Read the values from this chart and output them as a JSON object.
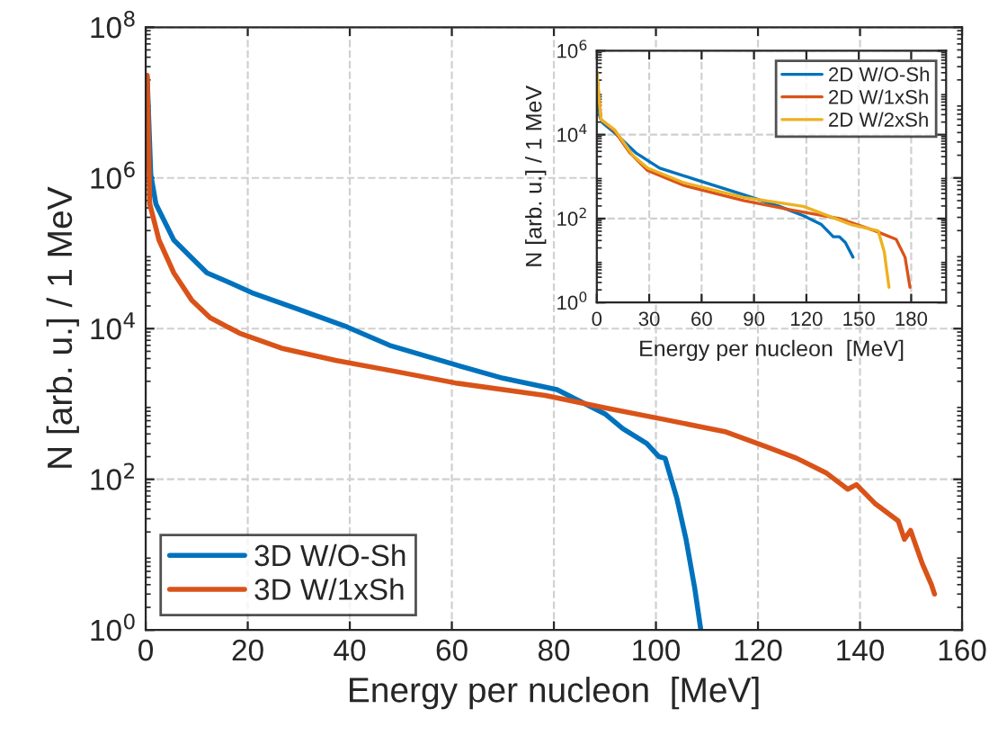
{
  "chart_data": [
    {
      "type": "line",
      "xlabel": "Energy per nucleon  [MeV]",
      "ylabel": "N [arb. u.] / 1 MeV",
      "log": "y",
      "grid": true,
      "legend": "bottom left",
      "line_style": "solid",
      "xlim": [
        0,
        160
      ],
      "xticks": [
        0,
        20,
        40,
        60,
        80,
        100,
        120,
        140,
        160
      ],
      "ylim": [
        1,
        100000000
      ],
      "yticks": [
        {
          "value": 1,
          "label": "10$^{0}$"
        },
        {
          "value": 100,
          "label": "10$^{2}$"
        },
        {
          "value": 10000,
          "label": "10$^{4}$"
        },
        {
          "value": 1000000,
          "label": "10$^{6}$"
        },
        {
          "value": 100000000,
          "label": "10$^{8}$"
        }
      ],
      "series": [
        {
          "name": "3D W/O-Sh",
          "color": "#0072bd",
          "x": [
            0.3,
            1,
            2,
            5.5,
            9,
            12,
            16,
            20.8,
            30,
            39.5,
            47.8,
            59.5,
            70,
            80.6,
            90,
            93.5,
            98.2,
            100.6,
            101.8,
            104.1,
            105.9,
            107.6,
            108.8
          ],
          "values": [
            21000000,
            1100000,
            450000,
            150000,
            87000,
            55000,
            42000,
            30000,
            18000,
            10500,
            6000,
            3500,
            2200,
            1550,
            740,
            470,
            300,
            200,
            190,
            56,
            16,
            3.6,
            1
          ]
        },
        {
          "name": "3D W/1xSh",
          "color": "#d95319",
          "x": [
            0.3,
            0.8,
            2.6,
            5.5,
            9,
            12.6,
            18.4,
            26.6,
            37.2,
            49,
            60.7,
            74.8,
            78.3,
            90,
            101.8,
            113.5,
            121.7,
            127.6,
            133.5,
            137.6,
            139.3,
            142.9,
            147.5,
            148.7,
            149.9,
            152.2,
            154,
            154.6
          ],
          "values": [
            23000000,
            450000,
            150000,
            55000,
            24000,
            14000,
            8700,
            5500,
            3800,
            2700,
            1900,
            1400,
            1300,
            890,
            620,
            430,
            270,
            190,
            120,
            74,
            85,
            48,
            28,
            16,
            21,
            7.6,
            4,
            3
          ]
        }
      ]
    },
    {
      "type": "line",
      "xlabel": "Energy per nucleon  [MeV]",
      "ylabel": "N [arb. u.] / 1 MeV",
      "log": "y",
      "grid": true,
      "legend": "top right",
      "line_style": "solid",
      "xlim": [
        0,
        200
      ],
      "xticks": [
        0,
        30,
        60,
        90,
        120,
        150,
        180
      ],
      "ylim": [
        1,
        1000000
      ],
      "yticks": [
        {
          "value": 1,
          "label": "10$^{0}$"
        },
        {
          "value": 100,
          "label": "10$^{2}$"
        },
        {
          "value": 10000,
          "label": "10$^{4}$"
        },
        {
          "value": 1000000,
          "label": "10$^{6}$"
        }
      ],
      "series": [
        {
          "name": "2D W/O-Sh",
          "color": "#0072bd",
          "x": [
            0,
            1.7,
            3.4,
            10.3,
            22.3,
            36,
            56.6,
            84,
            104.6,
            118.3,
            128.6,
            135.4,
            138.8,
            142.3,
            146.7
          ],
          "values": [
            320000,
            27000,
            19000,
            11000,
            3700,
            1600,
            850,
            370,
            195,
            117,
            72,
            37,
            37,
            27,
            12
          ]
        },
        {
          "name": "2D W/1xSh",
          "color": "#d95319",
          "x": [
            0,
            2.4,
            10.3,
            18.9,
            29.1,
            49.7,
            84,
            111.4,
            138.8,
            159.4,
            171.4,
            176.5,
            179.3
          ],
          "values": [
            270000,
            23000,
            12000,
            3700,
            1400,
            620,
            270,
            160,
            100,
            51,
            32,
            12,
            2.3
          ]
        },
        {
          "name": "2D W/2xSh",
          "color": "#edb120",
          "x": [
            0,
            2.4,
            10.3,
            20.6,
            29.1,
            49.7,
            84,
            118.3,
            145.7,
            161.1,
            164.6,
            167.3
          ],
          "values": [
            320000,
            23000,
            13000,
            3200,
            1600,
            720,
            320,
            195,
            72,
            51,
            16,
            2.3
          ]
        }
      ]
    }
  ]
}
